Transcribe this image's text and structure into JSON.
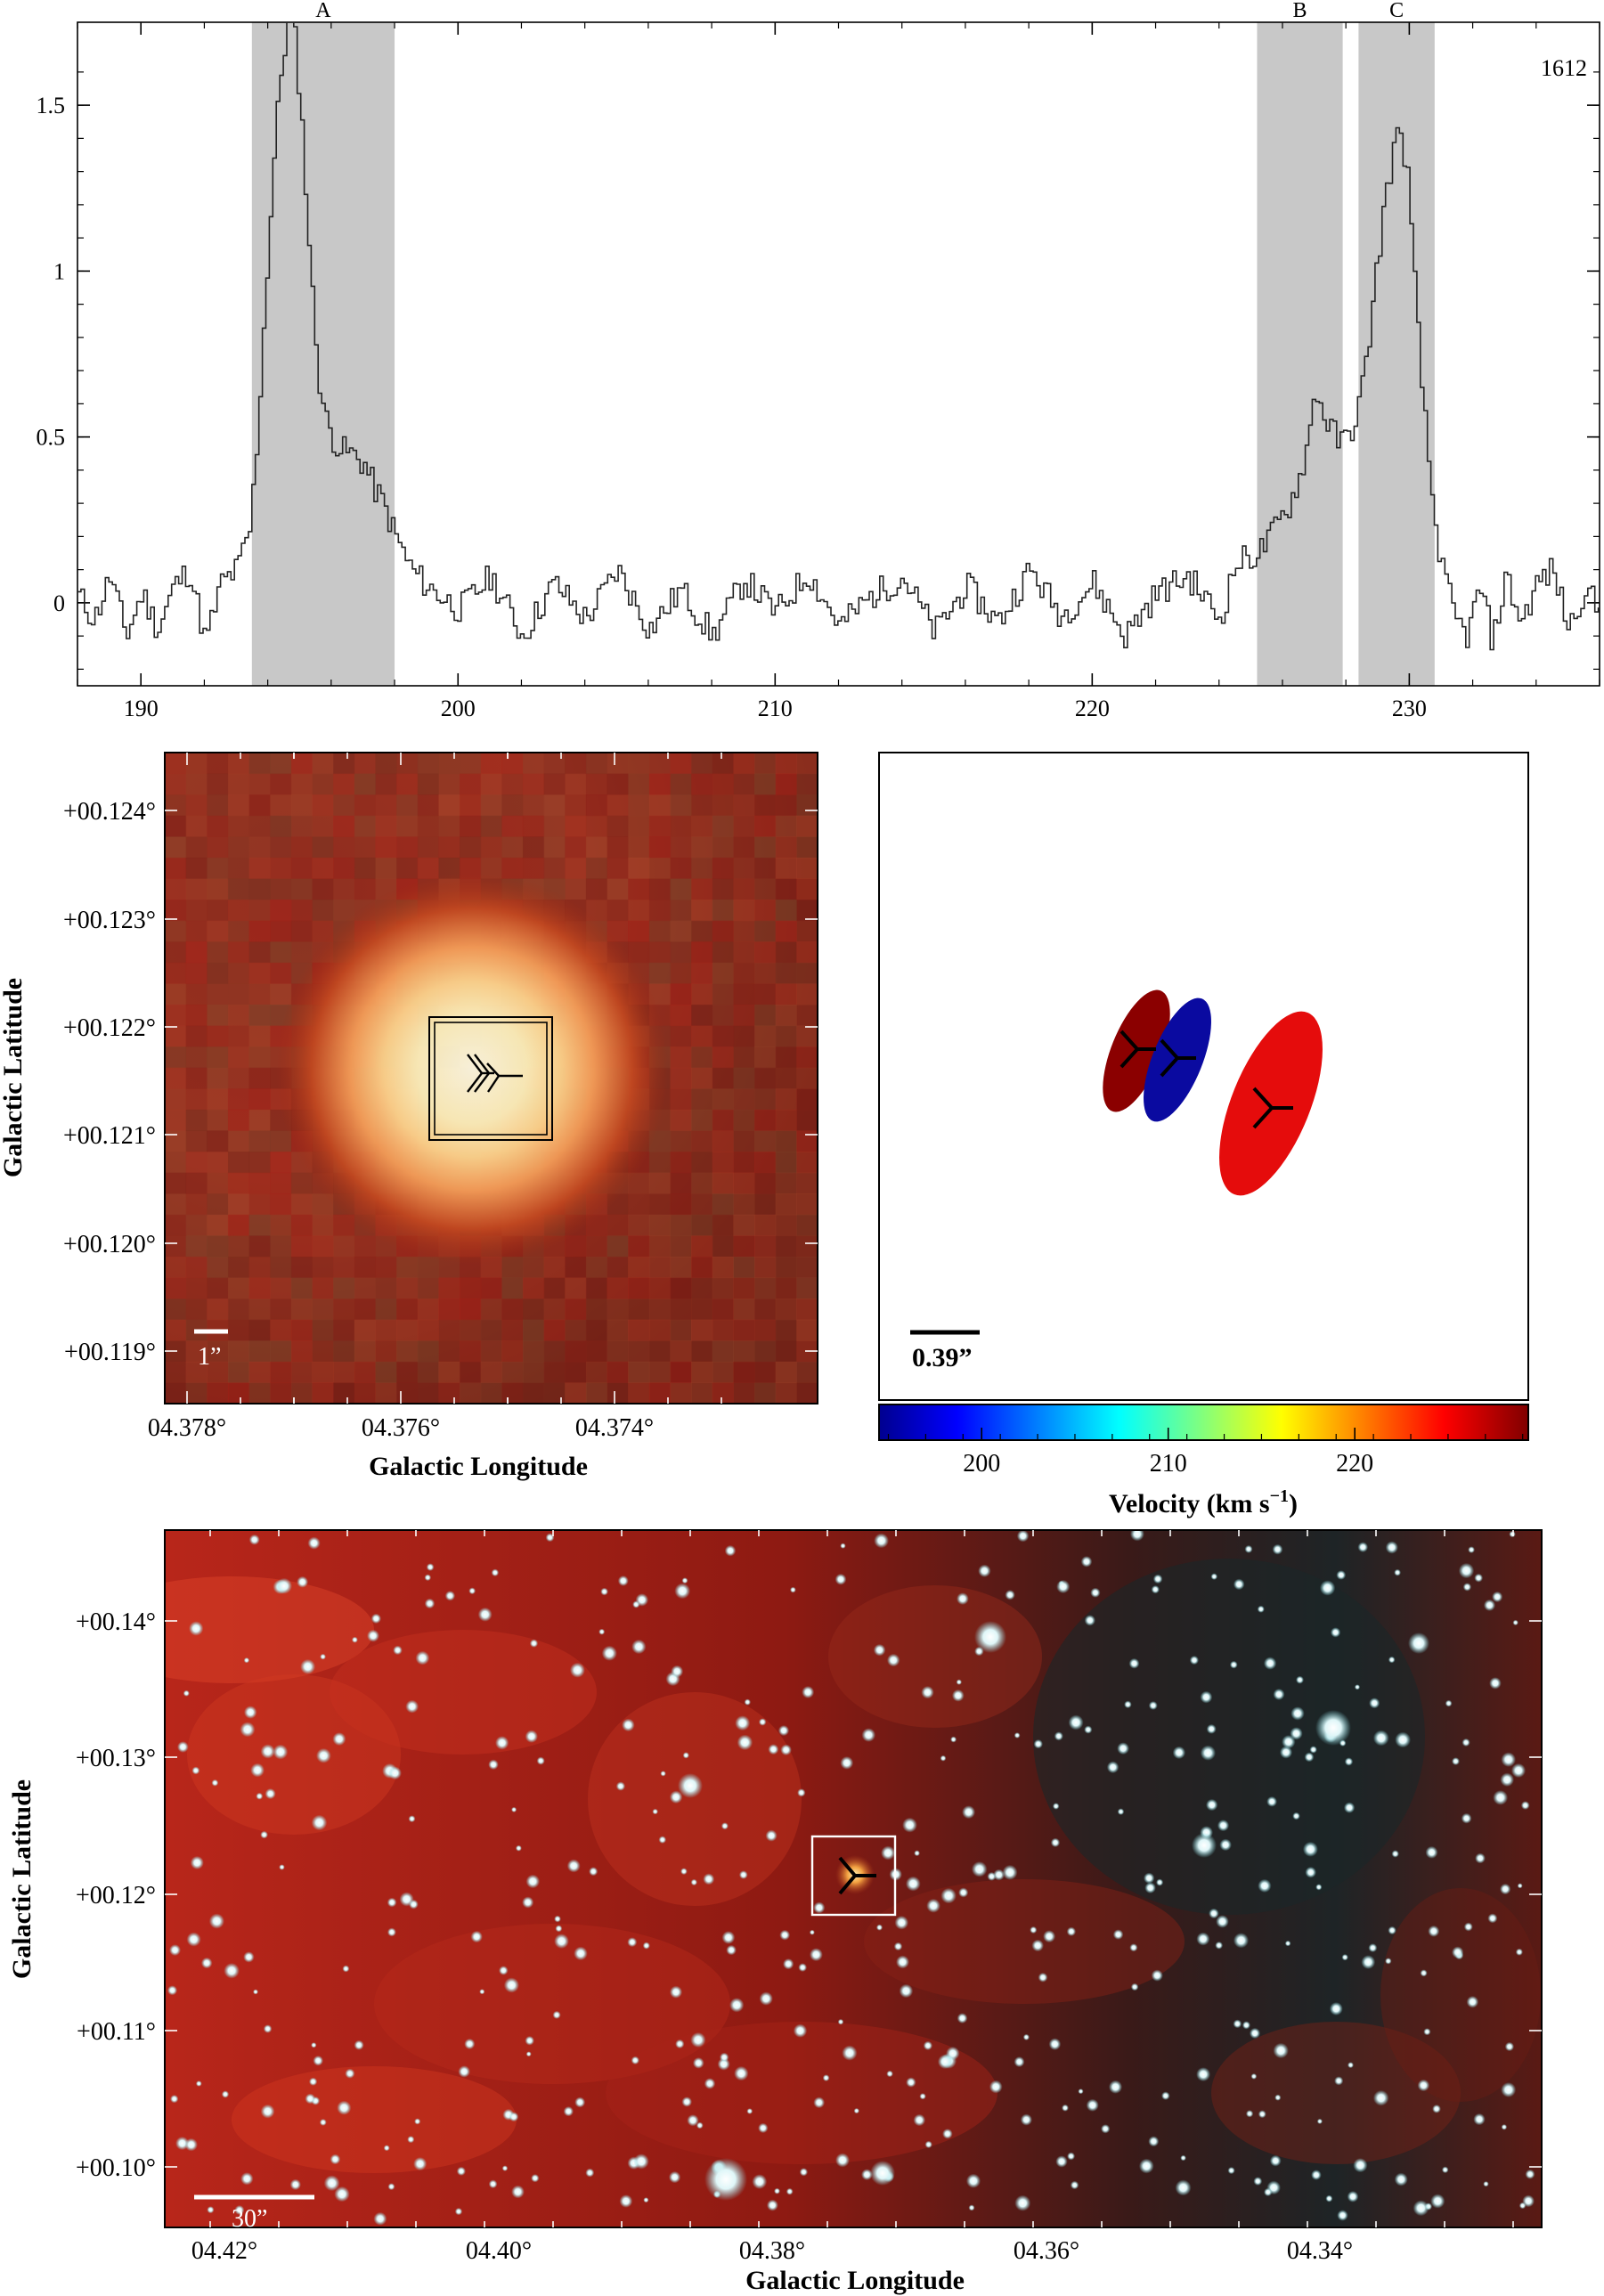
{
  "chart_data": [
    {
      "type": "line",
      "panel": "spectrum",
      "title": "",
      "xlabel": "",
      "ylabel": "",
      "corner_label": "1612",
      "xlim": [
        188,
        236
      ],
      "ylim": [
        -0.25,
        1.75
      ],
      "xticks": [
        "190",
        "200",
        "210",
        "220",
        "230"
      ],
      "yticks": [
        "0",
        "0.5",
        "1",
        "1.5"
      ],
      "regions": [
        {
          "label": "A",
          "x_start": 193.5,
          "x_end": 198.0
        },
        {
          "label": "B",
          "x_start": 225.2,
          "x_end": 227.9
        },
        {
          "label": "C",
          "x_start": 228.4,
          "x_end": 230.8
        }
      ],
      "series": [
        {
          "x": [
            188.0,
            188.5,
            189.0,
            189.5,
            190.0,
            190.5,
            191.0,
            191.5,
            192.0,
            192.5,
            193.0,
            193.4,
            193.6,
            193.8,
            194.0,
            194.2,
            194.4,
            194.6,
            194.8,
            195.0,
            195.2,
            195.4,
            195.6,
            195.8,
            196.0,
            196.3,
            196.6,
            197.0,
            197.3,
            197.6,
            198.0,
            198.5,
            199.0,
            200.0,
            201.0,
            202.0,
            203.0,
            204.0,
            205.0,
            206.0,
            207.0,
            208.0,
            209.0,
            210.0,
            211.0,
            212.0,
            213.0,
            214.0,
            215.0,
            216.0,
            217.0,
            218.0,
            219.0,
            220.0,
            221.0,
            222.0,
            223.0,
            224.0,
            224.5,
            225.0,
            225.3,
            225.6,
            225.9,
            226.2,
            226.5,
            226.8,
            227.0,
            227.2,
            227.5,
            227.8,
            228.0,
            228.3,
            228.6,
            228.9,
            229.2,
            229.5,
            229.7,
            229.9,
            230.1,
            230.4,
            230.7,
            231.0,
            231.4,
            231.8,
            232.2,
            232.6,
            233.0,
            233.5,
            234.0,
            234.5,
            235.0,
            235.5,
            236.0
          ],
          "values": [
            0.02,
            -0.05,
            0.08,
            -0.1,
            0.03,
            -0.08,
            0.05,
            0.1,
            -0.12,
            0.06,
            0.1,
            0.22,
            0.45,
            0.78,
            1.1,
            1.4,
            1.62,
            1.75,
            1.72,
            1.5,
            1.18,
            0.88,
            0.66,
            0.55,
            0.5,
            0.46,
            0.45,
            0.42,
            0.35,
            0.3,
            0.2,
            0.1,
            0.05,
            -0.02,
            0.08,
            -0.1,
            0.06,
            -0.05,
            0.1,
            -0.08,
            0.04,
            -0.1,
            0.07,
            -0.03,
            0.09,
            -0.07,
            0.02,
            0.08,
            -0.09,
            0.05,
            -0.06,
            0.1,
            -0.04,
            0.06,
            -0.1,
            0.03,
            0.08,
            -0.05,
            0.12,
            0.14,
            0.16,
            0.2,
            0.25,
            0.3,
            0.38,
            0.5,
            0.66,
            0.58,
            0.52,
            0.48,
            0.5,
            0.56,
            0.72,
            0.98,
            1.22,
            1.38,
            1.42,
            1.3,
            1.0,
            0.6,
            0.3,
            0.1,
            -0.05,
            -0.1,
            0.05,
            -0.12,
            0.08,
            -0.06,
            0.06,
            0.1,
            -0.08,
            0.05,
            -0.04
          ]
        }
      ]
    },
    {
      "type": "heatmap",
      "panel": "zoom-image",
      "xlabel": "Galactic Longitude",
      "ylabel": "Galactic Latitude",
      "xticks": [
        "04.378°",
        "04.376°",
        "04.374°"
      ],
      "yticks": [
        "+00.124°",
        "+00.123°",
        "+00.122°",
        "+00.121°",
        "+00.120°",
        "+00.119°"
      ],
      "scalebar_label": "1”"
    },
    {
      "type": "scatter",
      "panel": "maser-spots",
      "scalebar_label": "0.39”",
      "colorbar_label": "Velocity (km s",
      "colorbar_label_sup": "−1",
      "colorbar_label_end": ")",
      "colorbar_ticks": [
        "200",
        "210",
        "220"
      ],
      "colorbar_range": [
        194.5,
        229.3
      ],
      "spots": [
        {
          "component": "A",
          "velocity": 195.0,
          "color": "#0a0aa0"
        },
        {
          "component": "B",
          "velocity": 226.6,
          "color": "#8b0000"
        },
        {
          "component": "C",
          "velocity": 229.6,
          "color": "#e50c0c"
        }
      ]
    },
    {
      "type": "heatmap",
      "panel": "field-image",
      "xlabel": "Galactic Longitude",
      "ylabel": "Galactic Latitude",
      "xticks": [
        "04.42°",
        "04.40°",
        "04.38°",
        "04.36°",
        "04.34°"
      ],
      "yticks": [
        "+00.14°",
        "+00.13°",
        "+00.12°",
        "+00.11°",
        "+00.10°"
      ],
      "scalebar_label": "30”"
    }
  ]
}
